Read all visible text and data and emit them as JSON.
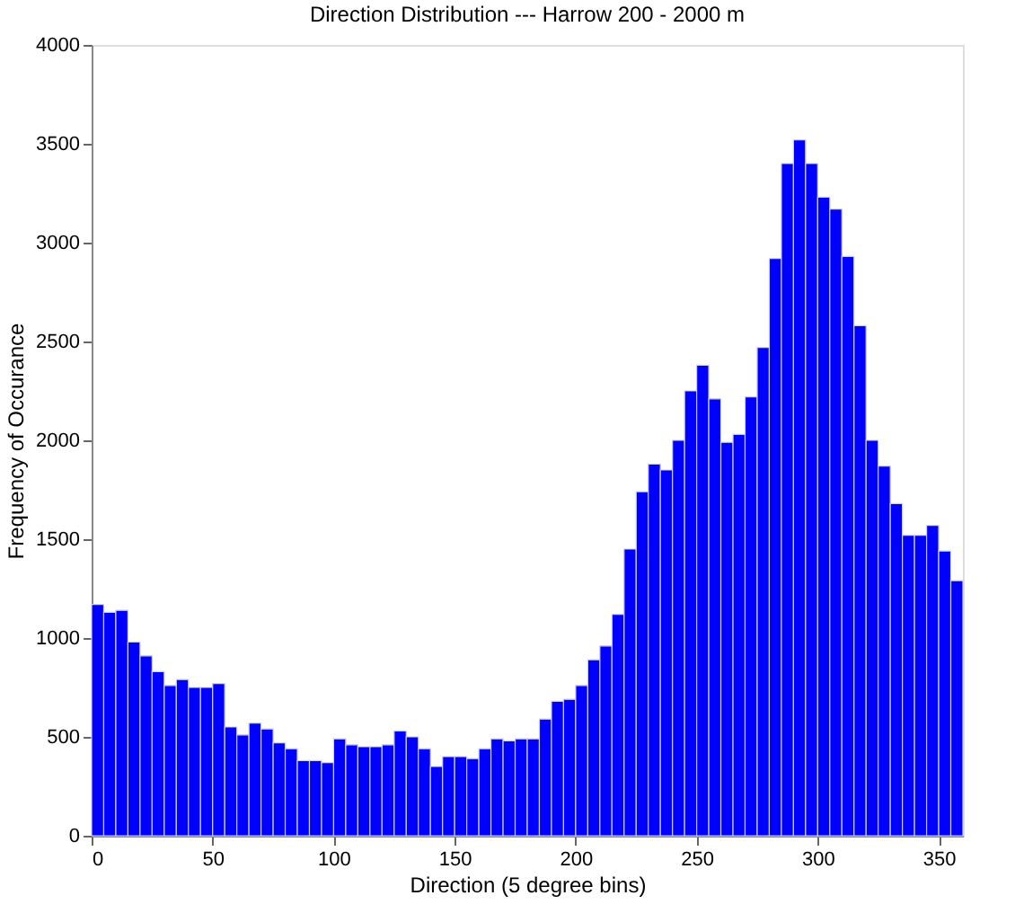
{
  "chart_data": {
    "type": "histogram",
    "title": "Direction Distribution --- Harrow 200 - 2000 m",
    "xlabel": "Direction (5 degree bins)",
    "ylabel": "Frequency of Occurance",
    "color": "#0000ff",
    "bins": [
      0,
      5,
      10,
      15,
      20,
      25,
      30,
      35,
      40,
      45,
      50,
      55,
      60,
      65,
      70,
      75,
      80,
      85,
      90,
      95,
      100,
      105,
      110,
      115,
      120,
      125,
      130,
      135,
      140,
      145,
      150,
      155,
      160,
      165,
      170,
      175,
      180,
      185,
      190,
      195,
      200,
      205,
      210,
      215,
      220,
      225,
      230,
      235,
      240,
      245,
      250,
      255,
      260,
      265,
      270,
      275,
      280,
      285,
      290,
      295,
      300,
      305,
      310,
      315,
      320,
      325,
      330,
      335,
      340,
      345,
      350,
      355,
      360
    ],
    "values": [
      1170,
      1130,
      1140,
      980,
      910,
      830,
      760,
      790,
      750,
      750,
      770,
      550,
      510,
      570,
      540,
      470,
      440,
      380,
      380,
      370,
      490,
      460,
      450,
      450,
      460,
      530,
      500,
      440,
      350,
      400,
      400,
      390,
      440,
      490,
      480,
      490,
      490,
      590,
      680,
      690,
      760,
      890,
      960,
      1120,
      1450,
      1740,
      1880,
      1850,
      2000,
      2250,
      2380,
      2210,
      1990,
      2030,
      2220,
      2470,
      2920,
      3400,
      3520,
      3400,
      3230,
      3170,
      2930,
      2580,
      2000,
      1870,
      1680,
      1520,
      1520,
      1570,
      1440,
      1290
    ],
    "xlim": [
      0,
      360
    ],
    "xticks": [
      0,
      50,
      100,
      150,
      200,
      250,
      300,
      350
    ],
    "ylim": [
      0,
      4000
    ],
    "yticks": [
      0,
      500,
      1000,
      1500,
      2000,
      2500,
      3000,
      3500,
      4000
    ],
    "grid": false
  }
}
